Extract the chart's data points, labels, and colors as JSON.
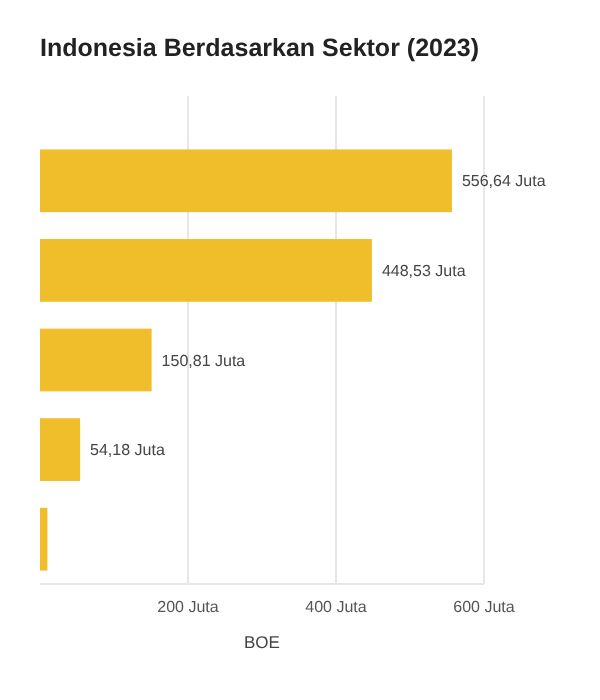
{
  "chart_data": {
    "type": "bar",
    "orientation": "horizontal",
    "title": "Indonesia Berdasarkan Sektor (2023)",
    "xlabel": "BOE",
    "categories": [
      null,
      null,
      null,
      null,
      null
    ],
    "values": [
      556.64,
      448.53,
      150.81,
      54.18,
      10
    ],
    "value_labels": [
      "556,64 Juta",
      "448,53 Juta",
      "150,81 Juta",
      "54,18 Juta",
      null
    ],
    "color": "#f0bd2b",
    "xlim": [
      0,
      600
    ],
    "xticks": [
      {
        "value": 200,
        "label": "200 Juta"
      },
      {
        "value": 400,
        "label": "400 Juta"
      },
      {
        "value": 600,
        "label": "600 Juta"
      }
    ],
    "grid": "x"
  }
}
